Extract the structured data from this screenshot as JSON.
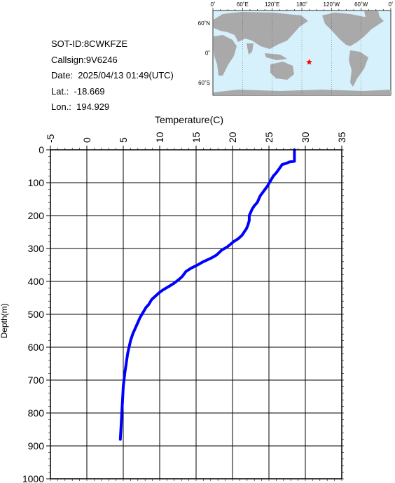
{
  "info": {
    "sot_id": "SOT-ID:8CWKFZE",
    "callsign": "Callsign:9V6246",
    "date": "Date:  2025/04/13 01:49(UTC)",
    "lat": "Lat.:  -18.669",
    "lon": "Lon.:  194.929"
  },
  "map": {
    "top_labels": [
      "0˚",
      "60˚E",
      "120˚E",
      "180˚",
      "120˚W",
      "60˚W",
      "0˚"
    ],
    "left_labels": [
      "60˚N",
      "0˚",
      "60˚S"
    ],
    "land_color": "#a9a9a9",
    "ocean_color": "#d6f1fb",
    "marker": {
      "lat": -18.669,
      "lon": 194.929,
      "color": "#ff0000",
      "shape": "star"
    }
  },
  "chart_data": {
    "type": "line",
    "xlabel": "Temperature(C)",
    "ylabel": "Depth(m)",
    "xlim": [
      -5,
      35
    ],
    "ylim": [
      1000,
      0
    ],
    "x_ticks": [
      -5,
      0,
      5,
      10,
      15,
      20,
      25,
      30,
      35
    ],
    "y_ticks": [
      0,
      100,
      200,
      300,
      400,
      500,
      600,
      700,
      800,
      900,
      1000
    ],
    "grid": true,
    "series_color": "#0000ff",
    "series": [
      {
        "x": [
          28.5,
          28.5,
          28.5,
          28.5,
          27.8,
          27.5,
          26.8,
          26.5,
          26.0,
          25.6,
          25.2,
          24.8,
          24.3,
          23.8,
          23.4,
          23.0,
          22.7,
          22.5,
          22.3,
          22.3,
          22.1,
          21.9,
          21.6,
          21.3,
          20.8,
          20.1,
          19.3,
          18.5,
          17.8,
          17.0,
          16.0,
          15.2,
          14.3,
          13.6,
          13.1,
          12.6,
          12.0,
          11.3,
          10.5,
          9.9,
          9.4,
          8.9,
          8.5,
          8.1,
          7.7,
          7.3,
          7.0,
          6.6,
          6.3,
          6.0,
          5.8,
          5.6,
          5.4,
          5.2,
          5.0,
          4.9,
          4.8,
          4.7,
          4.6
        ],
        "y": [
          0,
          10,
          25,
          35,
          37,
          40,
          45,
          55,
          70,
          80,
          95,
          110,
          125,
          140,
          160,
          170,
          180,
          190,
          200,
          215,
          230,
          240,
          250,
          260,
          270,
          280,
          295,
          305,
          320,
          330,
          340,
          350,
          360,
          370,
          385,
          395,
          405,
          415,
          425,
          435,
          445,
          455,
          470,
          480,
          495,
          510,
          525,
          545,
          560,
          580,
          600,
          620,
          650,
          680,
          720,
          760,
          800,
          840,
          880
        ]
      }
    ]
  }
}
